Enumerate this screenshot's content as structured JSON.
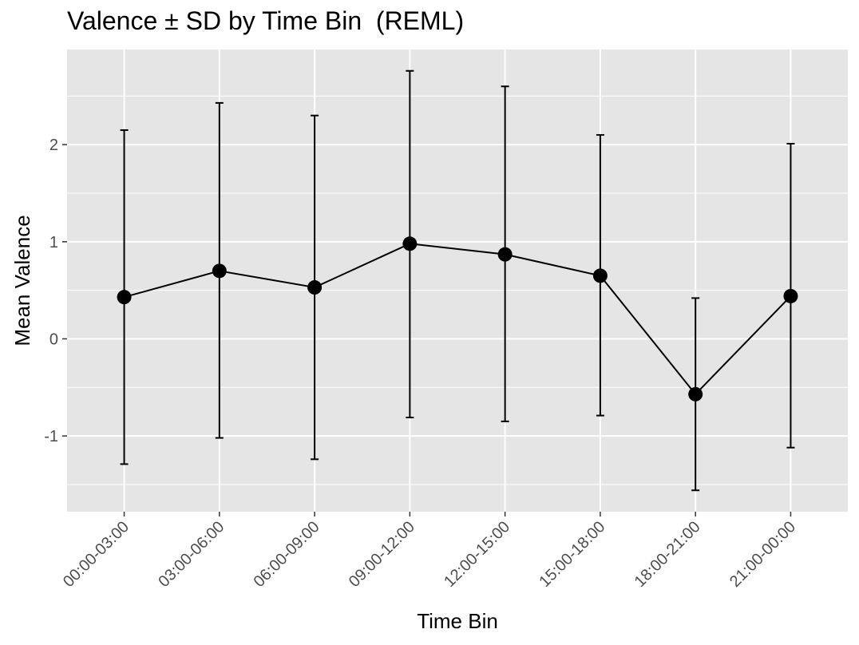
{
  "chart_data": {
    "type": "line",
    "title": "Valence ± SD by Time Bin  (REML)",
    "xlabel": "Time Bin",
    "ylabel": "Mean Valence",
    "categories": [
      "00:00-03:00",
      "03:00-06:00",
      "06:00-09:00",
      "09:00-12:00",
      "12:00-15:00",
      "15:00-18:00",
      "18:00-21:00",
      "21:00-00:00"
    ],
    "series": [
      {
        "values": [
          0.43,
          0.7,
          0.53,
          0.98,
          0.87,
          0.65,
          -0.57,
          0.44
        ],
        "error_low": [
          -1.29,
          -1.02,
          -1.24,
          -0.81,
          -0.85,
          -0.79,
          -1.56,
          -1.12
        ],
        "error_high": [
          2.15,
          2.43,
          2.3,
          2.76,
          2.6,
          2.1,
          0.42,
          2.01
        ]
      }
    ],
    "ylim": [
      -1.78,
      2.98
    ],
    "yticks": [
      -1,
      0,
      1,
      2
    ],
    "grid": true,
    "panel_background": "#e5e5e5",
    "grid_color": "#ffffff",
    "line_color": "#000000"
  }
}
